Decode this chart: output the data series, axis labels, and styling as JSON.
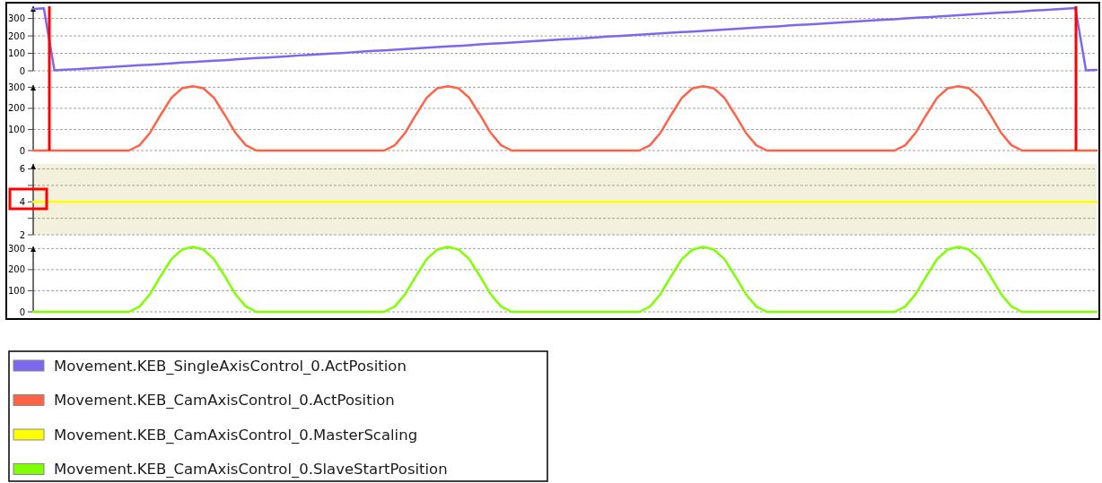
{
  "chart_data": [
    {
      "type": "line",
      "categories": [
        null,
        null,
        null,
        null,
        null,
        null,
        null,
        null,
        null,
        null,
        null,
        null,
        null,
        null,
        null,
        null,
        null,
        null,
        null,
        null,
        null,
        null,
        null,
        null,
        null,
        null,
        null,
        null,
        null,
        null,
        null,
        null,
        null,
        null,
        null,
        null,
        null,
        null,
        null,
        null,
        null,
        null,
        null,
        null,
        null,
        null,
        null,
        null,
        null,
        null,
        null,
        null,
        null,
        null,
        null,
        null,
        null,
        null,
        null,
        null,
        null,
        null,
        null,
        null,
        null,
        null,
        null,
        null,
        null,
        null,
        null,
        null,
        null,
        null,
        null,
        null,
        null,
        null,
        null,
        null,
        null,
        null,
        null,
        null,
        null,
        null,
        null,
        null,
        null,
        null,
        null,
        null,
        null,
        null,
        null,
        null,
        null,
        null,
        null,
        null,
        null
      ],
      "ylim": [
        0,
        370
      ],
      "yticks": [
        0,
        100,
        200,
        300
      ],
      "grid": "y",
      "tick_labels": "y",
      "legend": "bottom",
      "series": [
        {
          "name": "Movement.KEB_SingleAxisControl_0.ActPosition",
          "color": "#7b68ee",
          "values": [
            355,
            358,
            2,
            6,
            9,
            13,
            17,
            20,
            24,
            28,
            32,
            35,
            39,
            43,
            47,
            50,
            54,
            58,
            61,
            65,
            69,
            73,
            76,
            80,
            84,
            88,
            91,
            95,
            99,
            102,
            106,
            110,
            114,
            117,
            121,
            125,
            129,
            132,
            136,
            140,
            143,
            147,
            151,
            155,
            158,
            162,
            166,
            170,
            173,
            177,
            181,
            184,
            188,
            192,
            196,
            199,
            203,
            207,
            211,
            214,
            218,
            222,
            225,
            229,
            233,
            237,
            240,
            244,
            248,
            252,
            255,
            259,
            263,
            266,
            270,
            274,
            278,
            281,
            285,
            289,
            293,
            296,
            300,
            304,
            307,
            311,
            315,
            319,
            322,
            326,
            330,
            334,
            337,
            341,
            345,
            348,
            352,
            356,
            360,
            3,
            5
          ]
        }
      ]
    },
    {
      "type": "line",
      "categories": [
        null,
        null,
        null,
        null,
        null,
        null,
        null,
        null,
        null,
        null,
        null,
        null,
        null,
        null,
        null,
        null,
        null,
        null,
        null,
        null,
        null,
        null,
        null,
        null,
        null,
        null,
        null,
        null,
        null,
        null,
        null,
        null,
        null,
        null,
        null,
        null,
        null,
        null,
        null,
        null,
        null,
        null,
        null,
        null,
        null,
        null,
        null,
        null,
        null,
        null,
        null,
        null,
        null,
        null,
        null,
        null,
        null,
        null,
        null,
        null,
        null,
        null,
        null,
        null,
        null,
        null,
        null,
        null,
        null,
        null,
        null,
        null,
        null,
        null,
        null,
        null,
        null,
        null,
        null,
        null,
        null,
        null,
        null,
        null,
        null,
        null,
        null,
        null,
        null,
        null,
        null,
        null,
        null,
        null,
        null,
        null,
        null,
        null,
        null,
        null,
        null
      ],
      "ylim": [
        0,
        310
      ],
      "yticks": [
        0,
        100,
        200,
        300
      ],
      "grid": "y",
      "tick_labels": "y",
      "legend": "bottom",
      "series": [
        {
          "name": "Movement.KEB_CamAxisControl_0.ActPosition",
          "color": "#ff6347",
          "values": [
            0,
            0,
            0,
            0,
            0,
            0,
            0,
            0,
            0,
            0,
            25,
            85,
            170,
            250,
            295,
            305,
            295,
            250,
            170,
            85,
            25,
            0,
            0,
            0,
            0,
            0,
            0,
            0,
            0,
            0,
            0,
            0,
            0,
            0,
            25,
            85,
            170,
            250,
            295,
            305,
            295,
            250,
            170,
            85,
            25,
            0,
            0,
            0,
            0,
            0,
            0,
            0,
            0,
            0,
            0,
            0,
            0,
            0,
            25,
            85,
            170,
            250,
            295,
            305,
            295,
            250,
            170,
            85,
            25,
            0,
            0,
            0,
            0,
            0,
            0,
            0,
            0,
            0,
            0,
            0,
            0,
            0,
            25,
            85,
            170,
            250,
            295,
            305,
            295,
            250,
            170,
            85,
            25,
            0,
            0,
            0,
            0,
            0,
            0,
            0,
            0
          ]
        }
      ]
    },
    {
      "type": "line",
      "categories": [
        null,
        null,
        null,
        null,
        null,
        null,
        null,
        null,
        null,
        null,
        null,
        null,
        null,
        null,
        null,
        null,
        null,
        null,
        null,
        null,
        null,
        null,
        null,
        null,
        null,
        null,
        null,
        null,
        null,
        null,
        null,
        null,
        null,
        null,
        null,
        null,
        null,
        null,
        null,
        null,
        null,
        null,
        null,
        null,
        null,
        null,
        null,
        null,
        null,
        null,
        null,
        null,
        null,
        null,
        null,
        null,
        null,
        null,
        null,
        null,
        null,
        null,
        null,
        null,
        null,
        null,
        null,
        null,
        null,
        null,
        null,
        null,
        null,
        null,
        null,
        null,
        null,
        null,
        null,
        null,
        null,
        null,
        null,
        null,
        null,
        null,
        null,
        null,
        null,
        null,
        null,
        null,
        null,
        null,
        null,
        null,
        null,
        null,
        null,
        null,
        null
      ],
      "ylim": [
        2,
        6.3
      ],
      "yticks": [
        2,
        {
          "value": 3,
          "label": null
        },
        4,
        {
          "value": 5,
          "label": null
        },
        6
      ],
      "grid": "y",
      "tick_labels": "y",
      "legend": "bottom",
      "series": [
        {
          "name": "Movement.KEB_CamAxisControl_0.MasterScaling",
          "color": "#ffff00",
          "values": [
            4,
            4,
            4,
            4,
            4,
            4,
            4,
            4,
            4,
            4,
            4,
            4,
            4,
            4,
            4,
            4,
            4,
            4,
            4,
            4,
            4,
            4,
            4,
            4,
            4,
            4,
            4,
            4,
            4,
            4,
            4,
            4,
            4,
            4,
            4,
            4,
            4,
            4,
            4,
            4,
            4,
            4,
            4,
            4,
            4,
            4,
            4,
            4,
            4,
            4,
            4,
            4,
            4,
            4,
            4,
            4,
            4,
            4,
            4,
            4,
            4,
            4,
            4,
            4,
            4,
            4,
            4,
            4,
            4,
            4,
            4,
            4,
            4,
            4,
            4,
            4,
            4,
            4,
            4,
            4,
            4,
            4,
            4,
            4,
            4,
            4,
            4,
            4,
            4,
            4,
            4,
            4,
            4,
            4,
            4,
            4,
            4,
            4,
            4,
            4,
            4
          ]
        }
      ],
      "bands": [
        {
          "axis": "y",
          "from": 2,
          "to": 6.3,
          "color": "#f3f1dc"
        }
      ]
    },
    {
      "type": "line",
      "categories": [
        null,
        null,
        null,
        null,
        null,
        null,
        null,
        null,
        null,
        null,
        null,
        null,
        null,
        null,
        null,
        null,
        null,
        null,
        null,
        null,
        null,
        null,
        null,
        null,
        null,
        null,
        null,
        null,
        null,
        null,
        null,
        null,
        null,
        null,
        null,
        null,
        null,
        null,
        null,
        null,
        null,
        null,
        null,
        null,
        null,
        null,
        null,
        null,
        null,
        null,
        null,
        null,
        null,
        null,
        null,
        null,
        null,
        null,
        null,
        null,
        null,
        null,
        null,
        null,
        null,
        null,
        null,
        null,
        null,
        null,
        null,
        null,
        null,
        null,
        null,
        null,
        null,
        null,
        null,
        null,
        null,
        null,
        null,
        null,
        null,
        null,
        null,
        null,
        null,
        null,
        null,
        null,
        null,
        null,
        null,
        null,
        null,
        null,
        null,
        null,
        null
      ],
      "ylim": [
        0,
        310
      ],
      "yticks": [
        0,
        100,
        200,
        300
      ],
      "grid": "y",
      "tick_labels": "y",
      "legend": "bottom",
      "series": [
        {
          "name": "Movement.KEB_CamAxisControl_0.SlaveStartPosition",
          "color": "#7fff00",
          "values": [
            0,
            0,
            0,
            0,
            0,
            0,
            0,
            0,
            0,
            0,
            25,
            85,
            170,
            250,
            295,
            308,
            295,
            250,
            170,
            85,
            25,
            0,
            0,
            0,
            0,
            0,
            0,
            0,
            0,
            0,
            0,
            0,
            0,
            0,
            25,
            85,
            170,
            250,
            295,
            308,
            295,
            250,
            170,
            85,
            25,
            0,
            0,
            0,
            0,
            0,
            0,
            0,
            0,
            0,
            0,
            0,
            0,
            0,
            25,
            85,
            170,
            250,
            295,
            308,
            295,
            250,
            170,
            85,
            25,
            0,
            0,
            0,
            0,
            0,
            0,
            0,
            0,
            0,
            0,
            0,
            0,
            0,
            25,
            85,
            170,
            250,
            295,
            308,
            295,
            250,
            170,
            85,
            25,
            0,
            0,
            0,
            0,
            0,
            0,
            0,
            0
          ]
        }
      ]
    }
  ]
}
